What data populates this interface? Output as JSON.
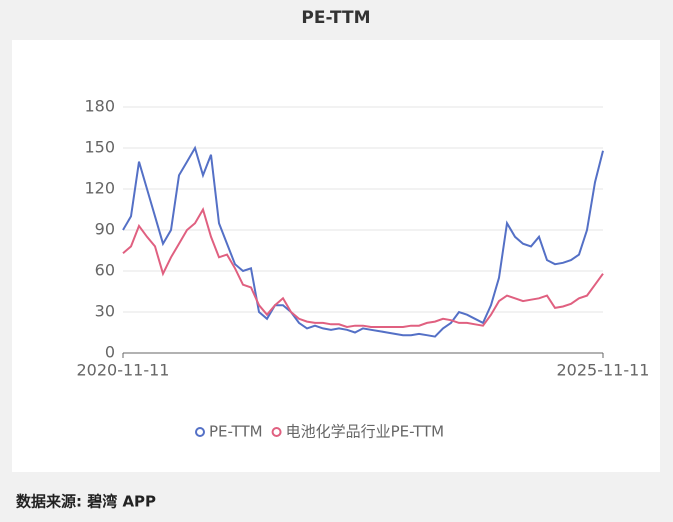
{
  "chart_data": {
    "type": "line",
    "title": "PE-TTM",
    "categories": [
      "2020-11-11",
      null,
      null,
      null,
      null,
      null,
      null,
      null,
      null,
      null,
      null,
      null,
      null,
      null,
      null,
      null,
      null,
      null,
      null,
      null,
      null,
      null,
      null,
      null,
      null,
      null,
      null,
      null,
      null,
      null,
      null,
      null,
      null,
      null,
      null,
      null,
      null,
      null,
      null,
      null,
      null,
      null,
      null,
      null,
      null,
      null,
      null,
      null,
      null,
      null,
      null,
      null,
      null,
      null,
      null,
      null,
      null,
      null,
      null,
      null,
      "2025-11-11"
    ],
    "series": [
      {
        "name": "PE-TTM",
        "color": "#5470c6",
        "values": [
          90,
          100,
          140,
          120,
          100,
          80,
          90,
          130,
          140,
          150,
          130,
          145,
          95,
          80,
          65,
          60,
          62,
          30,
          25,
          35,
          35,
          30,
          22,
          18,
          20,
          18,
          17,
          18,
          17,
          15,
          18,
          17,
          16,
          15,
          14,
          13,
          13,
          14,
          13,
          12,
          18,
          22,
          30,
          28,
          25,
          22,
          35,
          55,
          95,
          85,
          80,
          78,
          85,
          68,
          65,
          66,
          68,
          72,
          90,
          125,
          148
        ]
      },
      {
        "name": "电池化学品行业PE-TTM",
        "color": "#e06080",
        "values": [
          73,
          78,
          93,
          85,
          78,
          58,
          70,
          80,
          90,
          95,
          105,
          85,
          70,
          72,
          62,
          50,
          48,
          35,
          28,
          35,
          40,
          30,
          25,
          23,
          22,
          22,
          21,
          21,
          19,
          20,
          20,
          19,
          19,
          19,
          19,
          19,
          20,
          20,
          22,
          23,
          25,
          24,
          22,
          22,
          21,
          20,
          28,
          38,
          42,
          40,
          38,
          39,
          40,
          42,
          33,
          34,
          36,
          40,
          42,
          50,
          58
        ]
      }
    ],
    "ylim": [
      0,
      180
    ],
    "yticks": [
      0,
      30,
      60,
      90,
      120,
      150,
      180
    ],
    "grid": true,
    "legend": "bottom"
  },
  "footer": "数据来源: 碧湾 APP"
}
